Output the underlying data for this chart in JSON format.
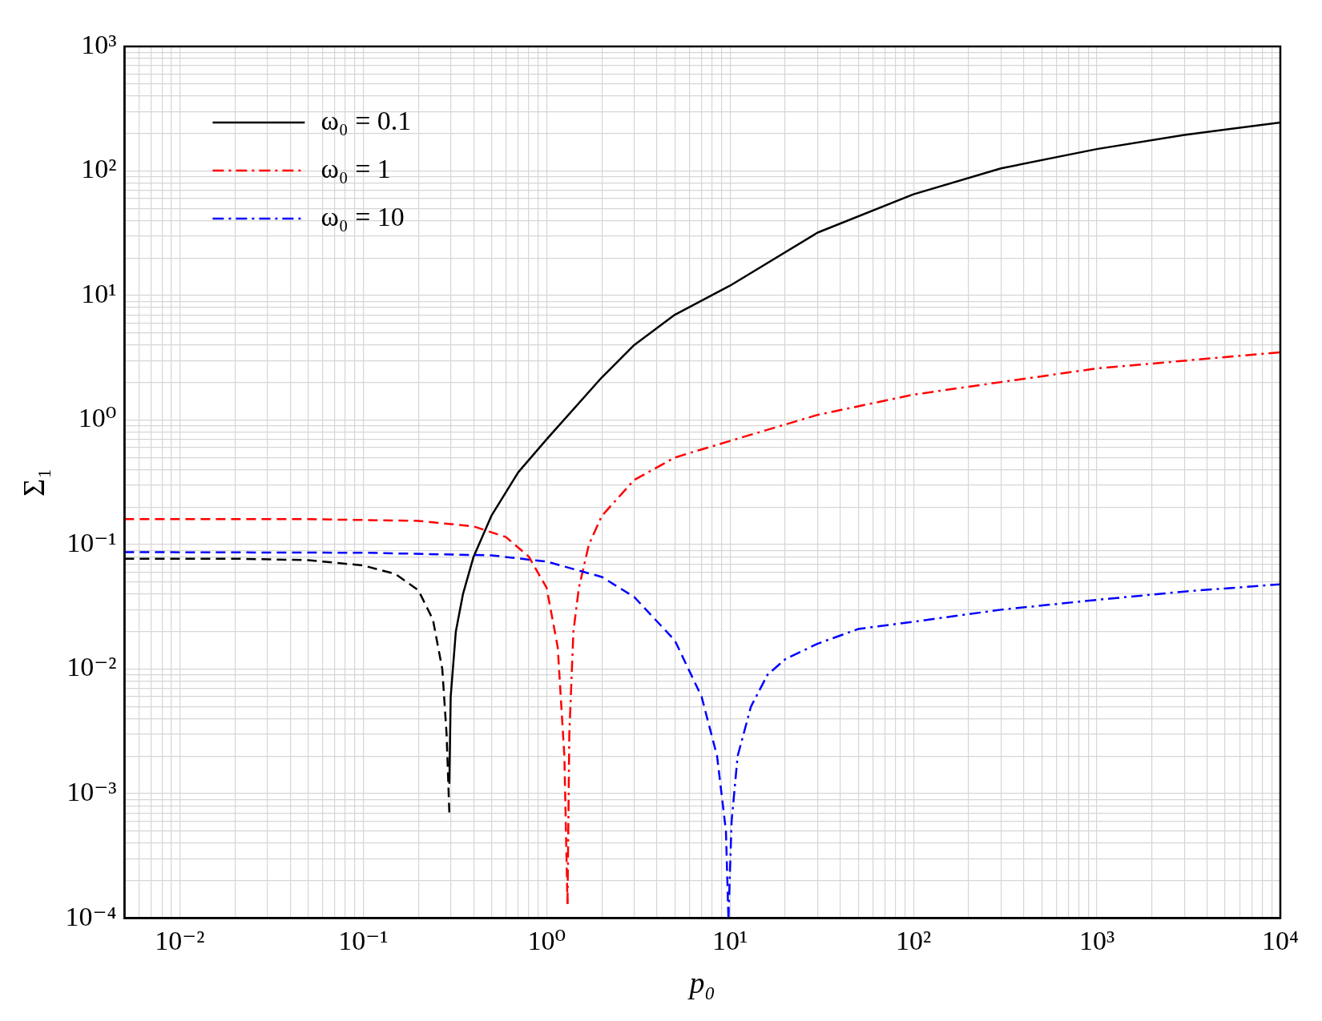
{
  "chart_data": {
    "type": "line",
    "xlabel": "p₀",
    "ylabel": "Σ₁",
    "log": "xy",
    "grid": true,
    "legend": "top left",
    "marker": "none",
    "xlim": [
      0.005,
      10000
    ],
    "ylim": [
      0.0001,
      1000
    ],
    "xticks": [
      {
        "value": 0.005,
        "label": null
      },
      {
        "value": 0.006,
        "label": null
      },
      {
        "value": 0.007,
        "label": null
      },
      {
        "value": 0.008,
        "label": null
      },
      {
        "value": 0.009,
        "label": null
      },
      {
        "value": 0.01,
        "label": "10⁻²"
      },
      {
        "value": 0.02,
        "label": null
      },
      {
        "value": 0.03,
        "label": null
      },
      {
        "value": 0.04,
        "label": null
      },
      {
        "value": 0.05,
        "label": null
      },
      {
        "value": 0.06,
        "label": null
      },
      {
        "value": 0.07,
        "label": null
      },
      {
        "value": 0.08,
        "label": null
      },
      {
        "value": 0.09,
        "label": null
      },
      {
        "value": 0.1,
        "label": "10⁻¹"
      },
      {
        "value": 0.2,
        "label": null
      },
      {
        "value": 0.3,
        "label": null
      },
      {
        "value": 0.4,
        "label": null
      },
      {
        "value": 0.5,
        "label": null
      },
      {
        "value": 0.6,
        "label": null
      },
      {
        "value": 0.7,
        "label": null
      },
      {
        "value": 0.8,
        "label": null
      },
      {
        "value": 0.9,
        "label": null
      },
      {
        "value": 1,
        "label": "10⁰"
      },
      {
        "value": 2,
        "label": null
      },
      {
        "value": 3,
        "label": null
      },
      {
        "value": 4,
        "label": null
      },
      {
        "value": 5,
        "label": null
      },
      {
        "value": 6,
        "label": null
      },
      {
        "value": 7,
        "label": null
      },
      {
        "value": 8,
        "label": null
      },
      {
        "value": 9,
        "label": null
      },
      {
        "value": 10,
        "label": "10¹"
      },
      {
        "value": 20,
        "label": null
      },
      {
        "value": 30,
        "label": null
      },
      {
        "value": 40,
        "label": null
      },
      {
        "value": 50,
        "label": null
      },
      {
        "value": 60,
        "label": null
      },
      {
        "value": 70,
        "label": null
      },
      {
        "value": 80,
        "label": null
      },
      {
        "value": 90,
        "label": null
      },
      {
        "value": 100,
        "label": "10²"
      },
      {
        "value": 200,
        "label": null
      },
      {
        "value": 300,
        "label": null
      },
      {
        "value": 400,
        "label": null
      },
      {
        "value": 500,
        "label": null
      },
      {
        "value": 600,
        "label": null
      },
      {
        "value": 700,
        "label": null
      },
      {
        "value": 800,
        "label": null
      },
      {
        "value": 900,
        "label": null
      },
      {
        "value": 1000,
        "label": "10³"
      },
      {
        "value": 2000,
        "label": null
      },
      {
        "value": 3000,
        "label": null
      },
      {
        "value": 4000,
        "label": null
      },
      {
        "value": 5000,
        "label": null
      },
      {
        "value": 6000,
        "label": null
      },
      {
        "value": 7000,
        "label": null
      },
      {
        "value": 8000,
        "label": null
      },
      {
        "value": 9000,
        "label": null
      },
      {
        "value": 10000,
        "label": "10⁴"
      }
    ],
    "yticks": [
      {
        "value": 0.0001,
        "label": "10⁻⁴"
      },
      {
        "value": 0.0002,
        "label": null
      },
      {
        "value": 0.0003,
        "label": null
      },
      {
        "value": 0.0004,
        "label": null
      },
      {
        "value": 0.0005,
        "label": null
      },
      {
        "value": 0.0006,
        "label": null
      },
      {
        "value": 0.0007,
        "label": null
      },
      {
        "value": 0.0008,
        "label": null
      },
      {
        "value": 0.0009,
        "label": null
      },
      {
        "value": 0.001,
        "label": "10⁻³"
      },
      {
        "value": 0.002,
        "label": null
      },
      {
        "value": 0.003,
        "label": null
      },
      {
        "value": 0.004,
        "label": null
      },
      {
        "value": 0.005,
        "label": null
      },
      {
        "value": 0.006,
        "label": null
      },
      {
        "value": 0.007,
        "label": null
      },
      {
        "value": 0.008,
        "label": null
      },
      {
        "value": 0.009,
        "label": null
      },
      {
        "value": 0.01,
        "label": "10⁻²"
      },
      {
        "value": 0.02,
        "label": null
      },
      {
        "value": 0.03,
        "label": null
      },
      {
        "value": 0.04,
        "label": null
      },
      {
        "value": 0.05,
        "label": null
      },
      {
        "value": 0.06,
        "label": null
      },
      {
        "value": 0.07,
        "label": null
      },
      {
        "value": 0.08,
        "label": null
      },
      {
        "value": 0.09,
        "label": null
      },
      {
        "value": 0.1,
        "label": "10⁻¹"
      },
      {
        "value": 0.2,
        "label": null
      },
      {
        "value": 0.3,
        "label": null
      },
      {
        "value": 0.4,
        "label": null
      },
      {
        "value": 0.5,
        "label": null
      },
      {
        "value": 0.6,
        "label": null
      },
      {
        "value": 0.7,
        "label": null
      },
      {
        "value": 0.8,
        "label": null
      },
      {
        "value": 0.9,
        "label": null
      },
      {
        "value": 1,
        "label": "10⁰"
      },
      {
        "value": 2,
        "label": null
      },
      {
        "value": 3,
        "label": null
      },
      {
        "value": 4,
        "label": null
      },
      {
        "value": 5,
        "label": null
      },
      {
        "value": 6,
        "label": null
      },
      {
        "value": 7,
        "label": null
      },
      {
        "value": 8,
        "label": null
      },
      {
        "value": 9,
        "label": null
      },
      {
        "value": 10,
        "label": "10¹"
      },
      {
        "value": 20,
        "label": null
      },
      {
        "value": 30,
        "label": null
      },
      {
        "value": 40,
        "label": null
      },
      {
        "value": 50,
        "label": null
      },
      {
        "value": 60,
        "label": null
      },
      {
        "value": 70,
        "label": null
      },
      {
        "value": 80,
        "label": null
      },
      {
        "value": 90,
        "label": null
      },
      {
        "value": 100,
        "label": "10²"
      },
      {
        "value": 200,
        "label": null
      },
      {
        "value": 300,
        "label": null
      },
      {
        "value": 400,
        "label": null
      },
      {
        "value": 500,
        "label": null
      },
      {
        "value": 600,
        "label": null
      },
      {
        "value": 700,
        "label": null
      },
      {
        "value": 800,
        "label": null
      },
      {
        "value": 900,
        "label": null
      },
      {
        "value": 1000,
        "label": "10³"
      }
    ],
    "series": [
      {
        "color": "#000000",
        "line_style": "dashed",
        "x": [
          0.005,
          0.02,
          0.05,
          0.1,
          0.15,
          0.2,
          0.24,
          0.27,
          0.285,
          0.295
        ],
        "values": [
          0.077,
          0.077,
          0.075,
          0.068,
          0.058,
          0.043,
          0.025,
          0.01,
          0.003,
          0.0007
        ]
      },
      {
        "color": "#ff0000",
        "line_style": "dashed",
        "x": [
          0.005,
          0.05,
          0.2,
          0.4,
          0.6,
          0.8,
          1,
          1.15,
          1.25,
          1.3
        ],
        "values": [
          0.16,
          0.16,
          0.155,
          0.14,
          0.115,
          0.08,
          0.045,
          0.015,
          0.002,
          0.00013
        ]
      },
      {
        "color": "#0000ff",
        "line_style": "dashed",
        "x": [
          0.005,
          0.1,
          0.5,
          1,
          2,
          3,
          5,
          7,
          8.5,
          9.5,
          9.8
        ],
        "values": [
          0.087,
          0.086,
          0.082,
          0.073,
          0.055,
          0.038,
          0.017,
          0.006,
          0.002,
          0.0005,
          0.0001
        ]
      },
      {
        "name": "ω₀ = 0.1",
        "color": "#000000",
        "line_style": "solid",
        "x": [
          0.295,
          0.3,
          0.32,
          0.35,
          0.4,
          0.5,
          0.7,
          1,
          2,
          3,
          5,
          10,
          30,
          100,
          300,
          1000,
          3000,
          10000
        ],
        "values": [
          0.0012,
          0.006,
          0.02,
          0.04,
          0.08,
          0.17,
          0.38,
          0.7,
          2.2,
          4,
          7,
          12,
          32,
          65,
          105,
          150,
          195,
          245
        ]
      },
      {
        "name": "ω₀ = 1",
        "color": "#ff0000",
        "line_style": "dashdot",
        "x": [
          1.3,
          1.33,
          1.4,
          1.5,
          1.7,
          2,
          3,
          5,
          10,
          30,
          100,
          1000,
          10000
        ],
        "values": [
          0.00013,
          0.003,
          0.02,
          0.045,
          0.1,
          0.17,
          0.33,
          0.5,
          0.68,
          1.1,
          1.6,
          2.6,
          3.5
        ]
      },
      {
        "name": "ω₀ = 10",
        "color": "#0000ff",
        "line_style": "dashdot",
        "x": [
          9.8,
          10.2,
          11,
          13,
          16,
          20,
          30,
          50,
          100,
          300,
          1000,
          3000,
          10000
        ],
        "values": [
          0.0001,
          0.0006,
          0.002,
          0.005,
          0.009,
          0.012,
          0.016,
          0.021,
          0.024,
          0.03,
          0.036,
          0.042,
          0.048
        ]
      }
    ]
  }
}
